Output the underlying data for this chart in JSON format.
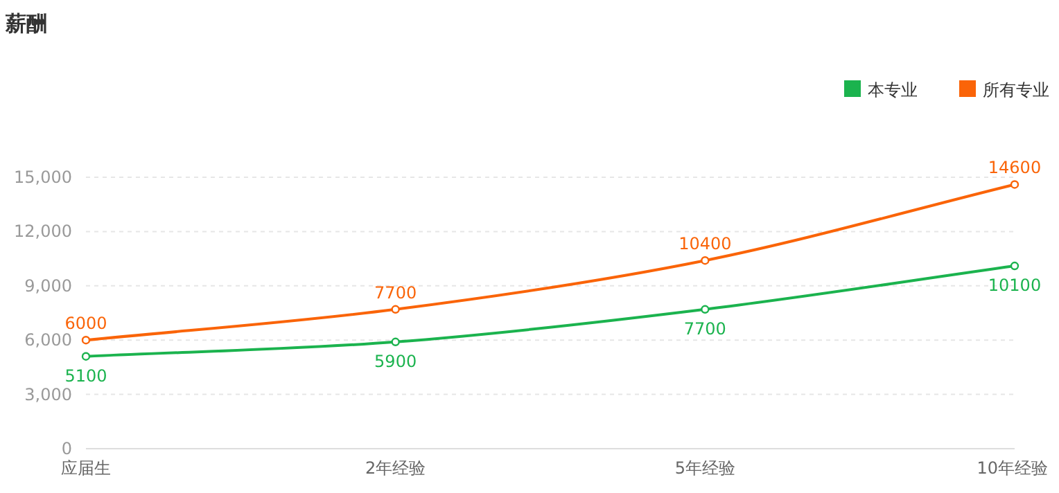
{
  "chart_data": {
    "type": "line",
    "title": "薪酬",
    "categories": [
      "应届生",
      "2年经验",
      "5年经验",
      "10年经验"
    ],
    "series": [
      {
        "name": "本专业",
        "color": "#1bb34e",
        "values": [
          5100,
          5900,
          7700,
          10100
        ]
      },
      {
        "name": "所有专业",
        "color": "#fa6408",
        "values": [
          6000,
          7700,
          10400,
          14600
        ]
      }
    ],
    "ylim": [
      0,
      15000
    ],
    "yticks": [
      {
        "value": 0,
        "label": "0"
      },
      {
        "value": 3000,
        "label": "3,000"
      },
      {
        "value": 6000,
        "label": "6,000"
      },
      {
        "value": 9000,
        "label": "9,000"
      },
      {
        "value": 12000,
        "label": "12,000"
      },
      {
        "value": 15000,
        "label": "15,000"
      }
    ],
    "grid": "y",
    "legend": "top right",
    "marker": "circle",
    "data_labels": true
  }
}
